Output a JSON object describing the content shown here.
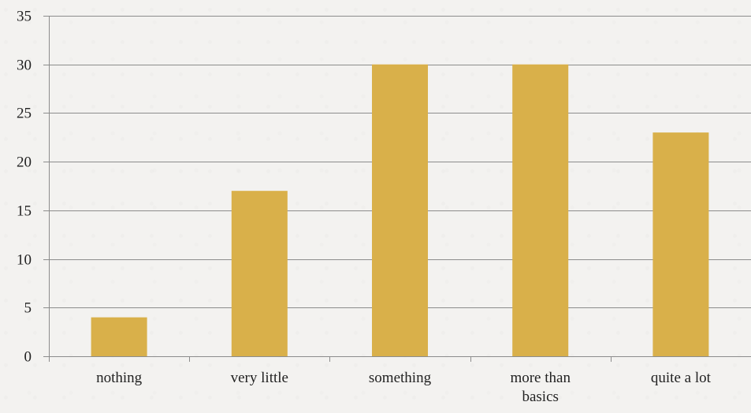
{
  "chart_data": {
    "type": "bar",
    "categories": [
      "nothing",
      "very little",
      "something",
      "more than basics",
      "quite a lot"
    ],
    "category_lines": [
      [
        "nothing"
      ],
      [
        "very little"
      ],
      [
        "something"
      ],
      [
        "more than",
        "basics"
      ],
      [
        "quite a lot"
      ]
    ],
    "values": [
      4,
      17,
      30,
      30,
      23
    ],
    "ylim": [
      0,
      35
    ],
    "yticks": [
      0,
      5,
      10,
      15,
      20,
      25,
      30,
      35
    ],
    "grid": true,
    "legend": "none",
    "colors": {
      "bar": "#d9b04a",
      "grid": "#8c8c8c",
      "axis": "#8c8c8c",
      "text": "#222222",
      "background": "#f3f2f0"
    }
  }
}
